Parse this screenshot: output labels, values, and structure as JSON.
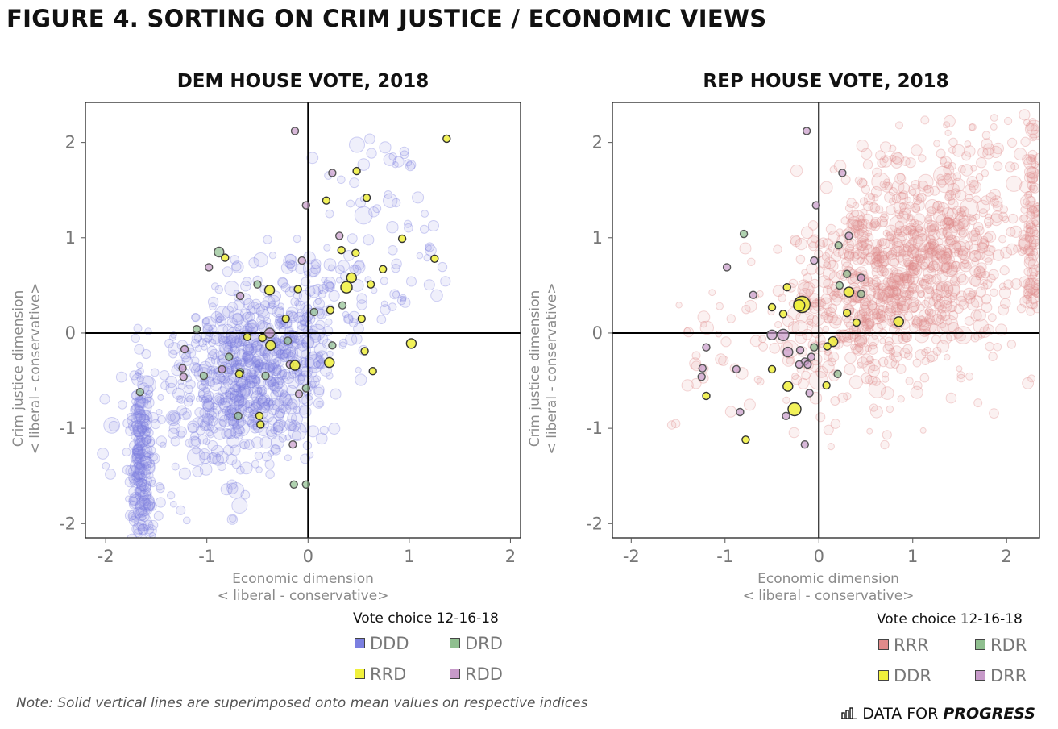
{
  "figure_title": "FIGURE 4. SORTING ON CRIM JUSTICE / ECONOMIC VIEWS",
  "note": "Note: Solid vertical lines are superimposed onto mean values on respective indices",
  "brand": {
    "prefix": "DATA FOR",
    "emphasis": "PROGRESS",
    "icon": "bar-chart-icon"
  },
  "chart_data": [
    {
      "type": "scatter",
      "title": "DEM HOUSE VOTE, 2018",
      "xlabel": "Economic dimension",
      "xlabel_sub": "< liberal - conservative>",
      "ylabel": "Crim justice dimension",
      "ylabel_sub": "< liberal - conservative>",
      "xlim": [
        -2.2,
        2.1
      ],
      "ylim": [
        -2.15,
        2.42
      ],
      "xticks": [
        "-2",
        "-1",
        "0",
        "1",
        "2"
      ],
      "xtick_values": [
        -2,
        -1,
        0,
        1,
        2
      ],
      "yticks": [
        "-2",
        "-1",
        "0",
        "1",
        "2"
      ],
      "ytick_values": [
        -2,
        -1,
        0,
        1,
        2
      ],
      "mean_x": 0,
      "mean_y": 0,
      "legend_title": "Vote choice 12-16-18",
      "legend": [
        {
          "label": "DDD",
          "color": "#7b7fe0"
        },
        {
          "label": "DRD",
          "color": "#8fbf8f"
        },
        {
          "label": "RRD",
          "color": "#f0f03c"
        },
        {
          "label": "RDD",
          "color": "#c79ac9"
        }
      ],
      "background_cloud": {
        "series": "DDD",
        "approx_points": 1100,
        "center": [
          -0.6,
          -0.4
        ]
      },
      "highlighted_points": [
        {
          "series": "DRD",
          "x": -0.88,
          "y": 0.85,
          "r": 6
        },
        {
          "series": "RRD",
          "x": -0.82,
          "y": 0.79
        },
        {
          "series": "RDD",
          "x": -0.98,
          "y": 0.69
        },
        {
          "series": "RDD",
          "x": -0.13,
          "y": 2.12
        },
        {
          "series": "RRD",
          "x": 1.37,
          "y": 2.04
        },
        {
          "series": "RRD",
          "x": 0.48,
          "y": 1.7
        },
        {
          "series": "RDD",
          "x": 0.24,
          "y": 1.68
        },
        {
          "series": "RRD",
          "x": 0.58,
          "y": 1.42
        },
        {
          "series": "RRD",
          "x": 0.18,
          "y": 1.39
        },
        {
          "series": "RDD",
          "x": -0.02,
          "y": 1.34
        },
        {
          "series": "RDD",
          "x": 0.31,
          "y": 1.02
        },
        {
          "series": "RRD",
          "x": 0.93,
          "y": 0.99
        },
        {
          "series": "RRD",
          "x": 0.33,
          "y": 0.87
        },
        {
          "series": "RRD",
          "x": 0.47,
          "y": 0.84
        },
        {
          "series": "RRD",
          "x": 1.25,
          "y": 0.78
        },
        {
          "series": "RDD",
          "x": -0.06,
          "y": 0.76
        },
        {
          "series": "RRD",
          "x": 0.74,
          "y": 0.67
        },
        {
          "series": "RRD",
          "x": 0.43,
          "y": 0.58,
          "r": 6
        },
        {
          "series": "RRD",
          "x": 0.38,
          "y": 0.48,
          "r": 7
        },
        {
          "series": "RRD",
          "x": 0.62,
          "y": 0.51
        },
        {
          "series": "RRD",
          "x": -0.38,
          "y": 0.45,
          "r": 6
        },
        {
          "series": "DRD",
          "x": -0.5,
          "y": 0.51
        },
        {
          "series": "RRD",
          "x": -0.1,
          "y": 0.46
        },
        {
          "series": "RDD",
          "x": -0.67,
          "y": 0.39
        },
        {
          "series": "RRD",
          "x": 0.22,
          "y": 0.24
        },
        {
          "series": "DRD",
          "x": 0.06,
          "y": 0.22
        },
        {
          "series": "DRD",
          "x": 0.34,
          "y": 0.29
        },
        {
          "series": "RRD",
          "x": 0.53,
          "y": 0.15
        },
        {
          "series": "RRD",
          "x": -0.22,
          "y": 0.15
        },
        {
          "series": "DRD",
          "x": -1.1,
          "y": 0.04
        },
        {
          "series": "RDD",
          "x": -0.38,
          "y": 0.0,
          "r": 6
        },
        {
          "series": "RRD",
          "x": -0.6,
          "y": -0.04
        },
        {
          "series": "RRD",
          "x": -0.45,
          "y": -0.05
        },
        {
          "series": "DRD",
          "x": -0.2,
          "y": -0.08
        },
        {
          "series": "RRD",
          "x": -0.37,
          "y": -0.13,
          "r": 6
        },
        {
          "series": "DRD",
          "x": 0.24,
          "y": -0.13
        },
        {
          "series": "RDD",
          "x": -1.22,
          "y": -0.17
        },
        {
          "series": "RRD",
          "x": 1.02,
          "y": -0.11,
          "r": 6
        },
        {
          "series": "RRD",
          "x": 0.56,
          "y": -0.19
        },
        {
          "series": "DRD",
          "x": -0.78,
          "y": -0.25
        },
        {
          "series": "RRD",
          "x": 0.21,
          "y": -0.31,
          "r": 6
        },
        {
          "series": "RDD",
          "x": -0.18,
          "y": -0.33
        },
        {
          "series": "RRD",
          "x": -0.13,
          "y": -0.34,
          "r": 6
        },
        {
          "series": "RDD",
          "x": -0.85,
          "y": -0.38
        },
        {
          "series": "RDD",
          "x": -1.24,
          "y": -0.37
        },
        {
          "series": "RRD",
          "x": 0.64,
          "y": -0.4
        },
        {
          "series": "DRD",
          "x": -0.67,
          "y": -0.41
        },
        {
          "series": "RRD",
          "x": -0.68,
          "y": -0.43
        },
        {
          "series": "DRD",
          "x": -1.03,
          "y": -0.45
        },
        {
          "series": "DRD",
          "x": -0.42,
          "y": -0.45
        },
        {
          "series": "RDD",
          "x": -1.23,
          "y": -0.46
        },
        {
          "series": "DRD",
          "x": -0.02,
          "y": -0.58
        },
        {
          "series": "DRD",
          "x": -1.66,
          "y": -0.62
        },
        {
          "series": "RDD",
          "x": -0.09,
          "y": -0.64
        },
        {
          "series": "RRD",
          "x": -0.48,
          "y": -0.87
        },
        {
          "series": "RRD",
          "x": -0.47,
          "y": -0.96
        },
        {
          "series": "DRD",
          "x": -0.69,
          "y": -0.87
        },
        {
          "series": "RDD",
          "x": -0.15,
          "y": -1.17
        },
        {
          "series": "DRD",
          "x": -0.14,
          "y": -1.59
        },
        {
          "series": "DRD",
          "x": -0.02,
          "y": -1.59
        }
      ]
    },
    {
      "type": "scatter",
      "title": "REP HOUSE VOTE, 2018",
      "xlabel": "Economic dimension",
      "xlabel_sub": "< liberal - conservative>",
      "ylabel": "Crim justice dimension",
      "ylabel_sub": "< liberal - conservative>",
      "xlim": [
        -2.2,
        2.35
      ],
      "ylim": [
        -2.15,
        2.42
      ],
      "xticks": [
        "-2",
        "-1",
        "0",
        "1",
        "2"
      ],
      "xtick_values": [
        -2,
        -1,
        0,
        1,
        2
      ],
      "yticks": [
        "-2",
        "-1",
        "0",
        "1",
        "2"
      ],
      "ytick_values": [
        -2,
        -1,
        0,
        1,
        2
      ],
      "mean_x": 0,
      "mean_y": 0,
      "legend_title": "Vote choice 12-16-18",
      "legend": [
        {
          "label": "RRR",
          "color": "#e08a8a"
        },
        {
          "label": "RDR",
          "color": "#8fbf8f"
        },
        {
          "label": "DDR",
          "color": "#f0f03c"
        },
        {
          "label": "DRR",
          "color": "#c79ac9"
        }
      ],
      "background_cloud": {
        "series": "RRR",
        "approx_points": 1200,
        "center": [
          0.9,
          0.7
        ]
      },
      "highlighted_points": [
        {
          "series": "DRR",
          "x": -0.13,
          "y": 2.12
        },
        {
          "series": "DRR",
          "x": 0.25,
          "y": 1.68
        },
        {
          "series": "DRR",
          "x": -0.03,
          "y": 1.34
        },
        {
          "series": "RDR",
          "x": -0.8,
          "y": 1.04
        },
        {
          "series": "DRR",
          "x": 0.32,
          "y": 1.02
        },
        {
          "series": "RDR",
          "x": 0.21,
          "y": 0.92
        },
        {
          "series": "DRR",
          "x": -0.05,
          "y": 0.76
        },
        {
          "series": "DRR",
          "x": -0.98,
          "y": 0.69
        },
        {
          "series": "RDR",
          "x": 0.22,
          "y": 0.5
        },
        {
          "series": "RDR",
          "x": 0.3,
          "y": 0.62
        },
        {
          "series": "DRR",
          "x": 0.45,
          "y": 0.58
        },
        {
          "series": "DDR",
          "x": -0.34,
          "y": 0.48
        },
        {
          "series": "DDR",
          "x": 0.32,
          "y": 0.43,
          "r": 6
        },
        {
          "series": "RDR",
          "x": 0.45,
          "y": 0.41
        },
        {
          "series": "DRR",
          "x": -0.7,
          "y": 0.4
        },
        {
          "series": "DDR",
          "x": -0.18,
          "y": 0.3,
          "r": 10
        },
        {
          "series": "DDR",
          "x": -0.21,
          "y": 0.29,
          "r": 7
        },
        {
          "series": "DDR",
          "x": -0.5,
          "y": 0.27
        },
        {
          "series": "DDR",
          "x": -0.38,
          "y": 0.2
        },
        {
          "series": "DDR",
          "x": 0.3,
          "y": 0.21
        },
        {
          "series": "DDR",
          "x": 0.4,
          "y": 0.11
        },
        {
          "series": "DDR",
          "x": 0.85,
          "y": 0.12,
          "r": 6
        },
        {
          "series": "DRR",
          "x": -0.38,
          "y": -0.02,
          "r": 7
        },
        {
          "series": "DRR",
          "x": -0.5,
          "y": -0.02,
          "r": 6
        },
        {
          "series": "DDR",
          "x": 0.15,
          "y": -0.09,
          "r": 6
        },
        {
          "series": "DDR",
          "x": 0.09,
          "y": -0.14
        },
        {
          "series": "RDR",
          "x": -0.05,
          "y": -0.15
        },
        {
          "series": "DRR",
          "x": -0.2,
          "y": -0.18
        },
        {
          "series": "DRR",
          "x": -0.33,
          "y": -0.2,
          "r": 6
        },
        {
          "series": "DRR",
          "x": -1.2,
          "y": -0.15
        },
        {
          "series": "DRR",
          "x": -0.08,
          "y": -0.25
        },
        {
          "series": "DRR",
          "x": -0.15,
          "y": -0.3
        },
        {
          "series": "DRR",
          "x": -0.12,
          "y": -0.33
        },
        {
          "series": "DRR",
          "x": -0.21,
          "y": -0.33
        },
        {
          "series": "DRR",
          "x": -0.88,
          "y": -0.38
        },
        {
          "series": "DDR",
          "x": -0.5,
          "y": -0.38
        },
        {
          "series": "DRR",
          "x": -1.24,
          "y": -0.37
        },
        {
          "series": "RDR",
          "x": 0.2,
          "y": -0.43
        },
        {
          "series": "DRR",
          "x": -1.25,
          "y": -0.46
        },
        {
          "series": "DDR",
          "x": -0.33,
          "y": -0.56,
          "r": 6
        },
        {
          "series": "DDR",
          "x": 0.08,
          "y": -0.55
        },
        {
          "series": "DRR",
          "x": -0.1,
          "y": -0.63
        },
        {
          "series": "DDR",
          "x": -1.2,
          "y": -0.66
        },
        {
          "series": "DDR",
          "x": -0.26,
          "y": -0.8,
          "r": 8
        },
        {
          "series": "DRR",
          "x": -0.84,
          "y": -0.83
        },
        {
          "series": "DRR",
          "x": -0.35,
          "y": -0.87
        },
        {
          "series": "DDR",
          "x": -0.78,
          "y": -1.12
        },
        {
          "series": "DRR",
          "x": -0.15,
          "y": -1.17
        }
      ]
    }
  ]
}
